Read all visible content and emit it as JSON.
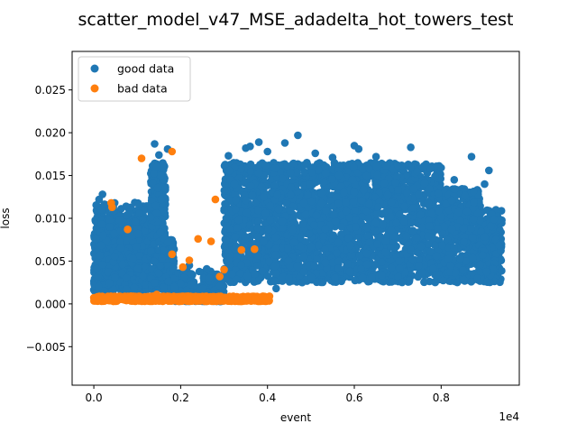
{
  "chart_data": {
    "type": "scatter",
    "title": "scatter_model_v47_MSE_adadelta_hot_towers_test",
    "xlabel": "event",
    "ylabel": "loss",
    "x_offset_label": "1e4",
    "xlim": [
      -500,
      9800
    ],
    "ylim": [
      -0.0095,
      0.0295
    ],
    "xticks": [
      0,
      2000,
      4000,
      6000,
      8000
    ],
    "xtick_labels": [
      "0.0",
      "0.2",
      "0.4",
      "0.6",
      "0.8"
    ],
    "yticks": [
      -0.005,
      0.0,
      0.005,
      0.01,
      0.015,
      0.02,
      0.025
    ],
    "ytick_labels": [
      "−0.005",
      "0.000",
      "0.005",
      "0.010",
      "0.015",
      "0.020",
      "0.025"
    ],
    "grid": false,
    "legend_position": "top-left",
    "series": [
      {
        "name": "good data",
        "color": "#1f77b4",
        "description_regions": [
          {
            "x": [
              0,
              1300
            ],
            "y": [
              0.0015,
              0.012
            ]
          },
          {
            "x": [
              1300,
              1850
            ],
            "y": [
              0.0015,
              0.0175
            ]
          },
          {
            "x": [
              1850,
              3000
            ],
            "y": [
              0.0003,
              0.004
            ]
          },
          {
            "x": [
              3000,
              9400
            ],
            "y": [
              0.0025,
              0.0175
            ]
          }
        ],
        "points": [
          [
            200,
            0.0128
          ],
          [
            120,
            0.0122
          ],
          [
            480,
            0.0118
          ],
          [
            820,
            0.0107
          ],
          [
            1050,
            0.0106
          ],
          [
            1400,
            0.0187
          ],
          [
            1500,
            0.0174
          ],
          [
            1700,
            0.0181
          ],
          [
            1450,
            0.016
          ],
          [
            1550,
            0.015
          ],
          [
            3100,
            0.0173
          ],
          [
            3500,
            0.0182
          ],
          [
            3600,
            0.0184
          ],
          [
            3800,
            0.0189
          ],
          [
            4000,
            0.0178
          ],
          [
            4400,
            0.0188
          ],
          [
            4700,
            0.0197
          ],
          [
            5100,
            0.0176
          ],
          [
            5500,
            0.0171
          ],
          [
            6000,
            0.0185
          ],
          [
            6100,
            0.0181
          ],
          [
            6500,
            0.0172
          ],
          [
            7000,
            0.0162
          ],
          [
            7300,
            0.0183
          ],
          [
            7600,
            0.0161
          ],
          [
            8000,
            0.0159
          ],
          [
            8700,
            0.0172
          ],
          [
            8300,
            0.0145
          ],
          [
            9100,
            0.0156
          ],
          [
            9000,
            0.014
          ],
          [
            4800,
            0.0025
          ],
          [
            4200,
            0.0018
          ],
          [
            3700,
            0.0035
          ],
          [
            2600,
            0.0041
          ],
          [
            2200,
            0.0045
          ],
          [
            2000,
            0.0024
          ],
          [
            2500,
            0.0018
          ]
        ]
      },
      {
        "name": "bad data",
        "color": "#ff7f0e",
        "description_regions": [
          {
            "x": [
              0,
              4100
            ],
            "y": [
              0.0003,
              0.001
            ]
          }
        ],
        "points": [
          [
            1100,
            0.017
          ],
          [
            1800,
            0.0178
          ],
          [
            2800,
            0.0122
          ],
          [
            400,
            0.0118
          ],
          [
            420,
            0.0113
          ],
          [
            780,
            0.0087
          ],
          [
            2400,
            0.0076
          ],
          [
            2700,
            0.0073
          ],
          [
            3400,
            0.0063
          ],
          [
            3700,
            0.0064
          ],
          [
            1800,
            0.0058
          ],
          [
            2200,
            0.0051
          ],
          [
            2050,
            0.0043
          ],
          [
            3000,
            0.004
          ],
          [
            2900,
            0.0032
          ],
          [
            1450,
            0.0011
          ],
          [
            3900,
            0.0007
          ]
        ]
      }
    ]
  }
}
